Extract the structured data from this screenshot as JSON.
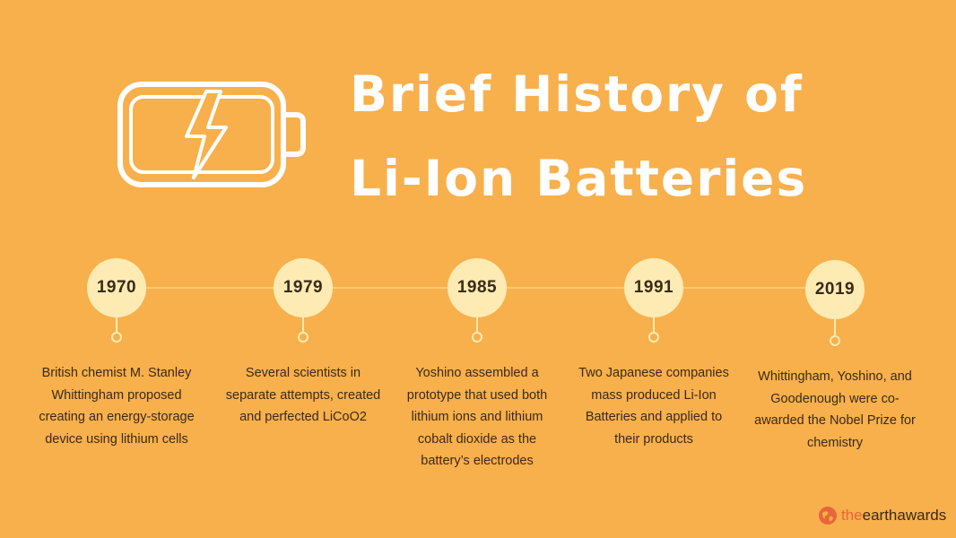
{
  "title": {
    "line1": "Brief History of",
    "line2": "Li-Ion Batteries"
  },
  "icons": {
    "header": "battery-charging-icon",
    "brand": "earth-icon"
  },
  "colors": {
    "background": "#F8B04C",
    "badge": "#FDEBB3",
    "title": "#FFFFFF",
    "text": "#3A2A18",
    "brand_accent": "#E8663A"
  },
  "timeline": [
    {
      "year": "1970",
      "text": "British chemist M. Stanley Whittingham proposed creating an energy-storage device using lithium cells"
    },
    {
      "year": "1979",
      "text": "Several scientists in separate attempts, created and perfected LiCoO2"
    },
    {
      "year": "1985",
      "text": "Yoshino assembled a prototype that used both lithium ions and lithium cobalt dioxide as the battery’s electrodes"
    },
    {
      "year": "1991",
      "text": "Two Japanese companies mass produced Li-Ion Batteries and applied to their products"
    },
    {
      "year": "2019",
      "text": "Whittingham, Yoshino, and Goodenough were co-awarded the Nobel Prize for chemistry"
    }
  ],
  "brand": {
    "part1": "the",
    "part2": "earth",
    "part3": "awards"
  }
}
